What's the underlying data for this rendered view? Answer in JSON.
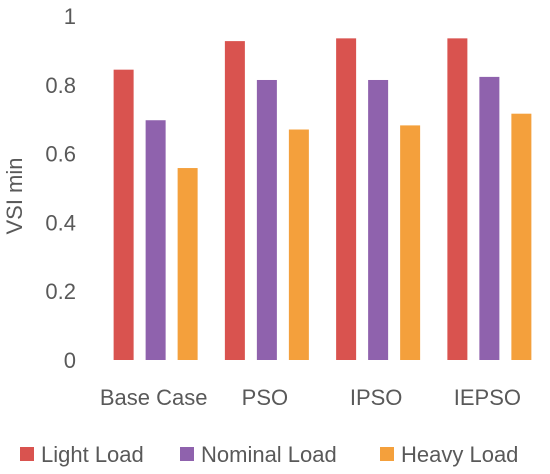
{
  "chart_data": {
    "type": "bar",
    "title": "",
    "xlabel": "",
    "ylabel": "VSI min",
    "ylim": [
      0,
      1
    ],
    "yticks": [
      "0",
      "0.2",
      "0.4",
      "0.6",
      "0.8",
      "1"
    ],
    "grid": false,
    "legend_position": "bottom",
    "categories": [
      "Base Case",
      "PSO",
      "IPSO",
      "IEPSO"
    ],
    "series": [
      {
        "name": "Light Load",
        "color": "#d9534f",
        "values": [
          0.844,
          0.927,
          0.935,
          0.935
        ]
      },
      {
        "name": "Nominal Load",
        "color": "#8f62ad",
        "values": [
          0.697,
          0.814,
          0.814,
          0.823
        ]
      },
      {
        "name": "Heavy Load",
        "color": "#f4a03c",
        "values": [
          0.558,
          0.67,
          0.682,
          0.716
        ]
      }
    ]
  }
}
